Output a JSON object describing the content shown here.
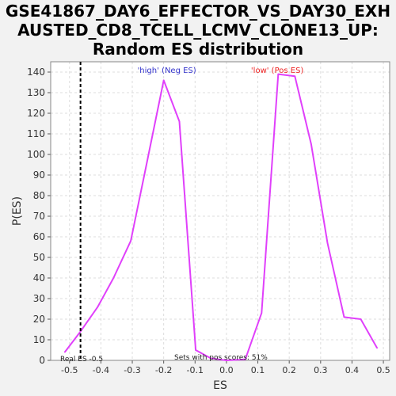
{
  "title_lines": [
    "GSE41867_DAY6_EFFECTOR_VS_DAY30_EXH",
    "AUSTED_CD8_TCELL_LCMV_CLONE13_UP:",
    "Random ES distribution"
  ],
  "chart_data": {
    "type": "line",
    "title": "GSE41867_DAY6_EFFECTOR_VS_DAY30_EXHAUSTED_CD8_TCELL_LCMV_CLONE13_UP: Random ES distribution",
    "xlabel": "ES",
    "ylabel": "P(ES)",
    "xlim": [
      -0.56,
      0.52
    ],
    "ylim": [
      0,
      145
    ],
    "xticks": [
      -0.5,
      -0.4,
      -0.3,
      -0.2,
      -0.1,
      0.0,
      0.1,
      0.2,
      0.3,
      0.4,
      0.5
    ],
    "xtick_labels": [
      "-0.5",
      "-0.4",
      "-0.3",
      "-0.2",
      "-0.1",
      "0.0",
      "0.1",
      "0.2",
      "0.3",
      "0.4",
      "0.5"
    ],
    "yticks": [
      0,
      10,
      20,
      30,
      40,
      50,
      60,
      70,
      80,
      90,
      100,
      110,
      120,
      130,
      140
    ],
    "ytick_labels": [
      "0",
      "10",
      "20",
      "30",
      "40",
      "50",
      "60",
      "70",
      "80",
      "90",
      "100",
      "110",
      "120",
      "130",
      "140"
    ],
    "grid": true,
    "series": [
      {
        "color": "#e040fb",
        "x": [
          -0.515,
          -0.465,
          -0.41,
          -0.36,
          -0.305,
          -0.255,
          -0.2,
          -0.15,
          -0.098,
          -0.05,
          0.0,
          0.06,
          0.112,
          0.165,
          0.218,
          0.27,
          0.322,
          0.375,
          0.428,
          0.48
        ],
        "y": [
          4,
          14,
          26,
          40,
          58,
          95,
          136,
          116,
          5,
          1,
          0,
          0.5,
          23,
          139,
          138,
          105,
          57,
          21,
          20,
          6
        ]
      }
    ],
    "annotations": {
      "high_label": "'high' (Neg ES)",
      "high_color": "#3333cc",
      "low_label": "'low' (Pos ES)",
      "low_color": "#ee2222",
      "real_es_label": "Real ES -0.5",
      "real_es_value": -0.465,
      "pos_scores_label": "Sets with pos scores: 51%"
    }
  }
}
